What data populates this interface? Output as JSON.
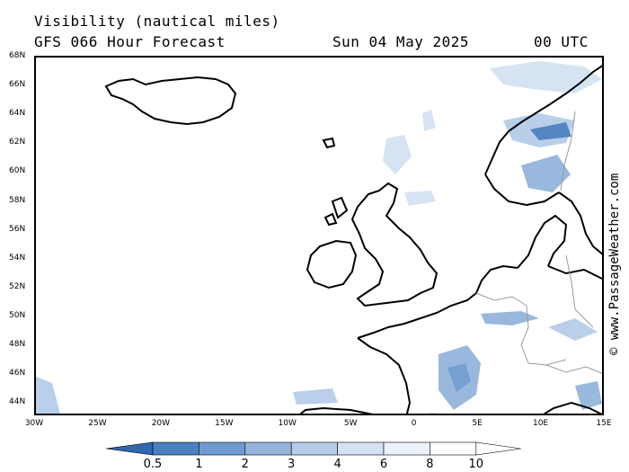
{
  "title": {
    "line1": "Visibility (nautical miles)",
    "model": "GFS 066 Hour Forecast",
    "date": "Sun 04 May 2025",
    "time": "00 UTC"
  },
  "credit": "© www.PassageWeather.com",
  "lat_labels": [
    "68N",
    "66N",
    "64N",
    "62N",
    "60N",
    "58N",
    "56N",
    "54N",
    "52N",
    "50N",
    "48N",
    "46N",
    "44N"
  ],
  "lon_labels": [
    "30W",
    "25W",
    "20W",
    "15W",
    "10W",
    "5W",
    "0",
    "5E",
    "10E",
    "15E"
  ],
  "colorbar": {
    "labels": [
      "0.5",
      "1",
      "2",
      "3",
      "4",
      "6",
      "8",
      "10"
    ],
    "colors": [
      "#2e68b0",
      "#4a80c0",
      "#6f9bd0",
      "#94b5dc",
      "#b6cce8",
      "#d4e2f2",
      "#ecf2fa",
      "#ffffff"
    ]
  }
}
